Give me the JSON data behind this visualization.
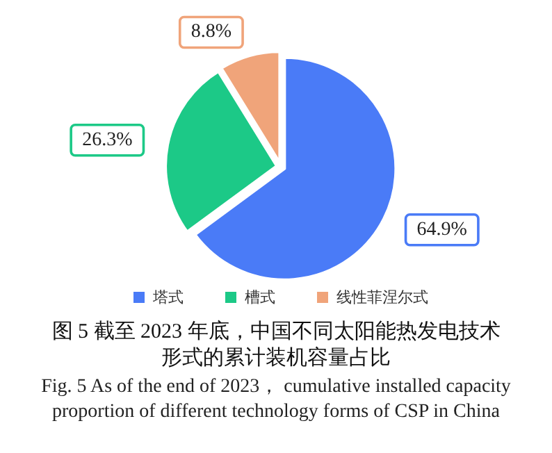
{
  "chart_data": {
    "type": "pie",
    "title": "图 5  截至 2023 年底，中国不同太阳能热发电技术形式的累计装机容量占比",
    "subtitle": "Fig. 5  As of the end of 2023， cumulative installed capacity proportion of different technology forms of CSP in China",
    "categories": [
      "塔式",
      "槽式",
      "线性菲涅尔式"
    ],
    "values": [
      64.9,
      26.3,
      8.8
    ],
    "value_labels": [
      "64.9%",
      "26.3%",
      "8.8%"
    ],
    "colors": [
      "#4a7bf7",
      "#1cc987",
      "#f0a47a"
    ],
    "legend": "bottom"
  }
}
